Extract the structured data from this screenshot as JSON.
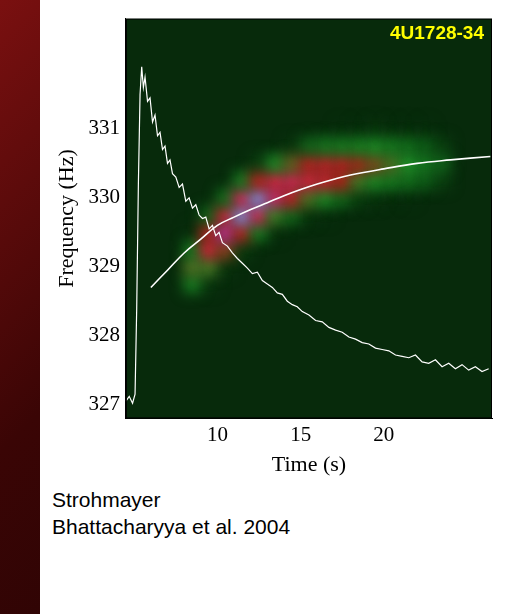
{
  "chart_data": {
    "type": "heatmap",
    "annotation": {
      "text": "4U1728-34",
      "color": "#ffff00"
    },
    "x_label": "Time (s)",
    "y_label": "Frequency (Hz)",
    "xlim": [
      4.5,
      26.5
    ],
    "xticks": [
      10,
      15,
      20
    ],
    "ylim": [
      326.8,
      332.6
    ],
    "yticks": [
      327,
      328,
      329,
      330,
      331
    ],
    "grid": false,
    "credits": [
      "Strohmayer",
      "Bhattacharyya et al. 2004"
    ],
    "heatmap": {
      "x": [
        8.5,
        9.5,
        10.5,
        11.5,
        12.5,
        13.5,
        14.5,
        15.5,
        16.5,
        17.5,
        18.5,
        19.5,
        20.5,
        21.5,
        22.5,
        23.5
      ],
      "y": [
        328.75,
        329.0,
        329.25,
        329.5,
        329.75,
        330.0,
        330.25,
        330.5,
        330.75,
        331.0
      ],
      "cells": [
        [
          1.0,
          0.2,
          0,
          0,
          0,
          0,
          0,
          0,
          0,
          0,
          0,
          0,
          0,
          0,
          0,
          0
        ],
        [
          2.0,
          1.9,
          0.2,
          0,
          0,
          0,
          0,
          0,
          0,
          0,
          0,
          0,
          0,
          0,
          0,
          0
        ],
        [
          1.0,
          4.9,
          2.6,
          0.3,
          0,
          0,
          0,
          0,
          0,
          0,
          0,
          0,
          0,
          0,
          0,
          0
        ],
        [
          0.1,
          3.2,
          6.8,
          3.3,
          1.0,
          0.1,
          0,
          0,
          0,
          0,
          0,
          0,
          0,
          0,
          0,
          0
        ],
        [
          0,
          0.6,
          4.5,
          8.7,
          5.8,
          1.8,
          0.7,
          0.2,
          0.1,
          0,
          0,
          0,
          0,
          0,
          0,
          0
        ],
        [
          0,
          0,
          0.8,
          5.8,
          8.7,
          6.2,
          3.8,
          2.0,
          1.3,
          0.7,
          0.3,
          0.2,
          0.1,
          0.1,
          0,
          0
        ],
        [
          0,
          0,
          0,
          1.0,
          3.3,
          5.5,
          5.8,
          5.3,
          4.5,
          3.1,
          1.9,
          1.3,
          1.0,
          0.8,
          0.5,
          0.3
        ],
        [
          0,
          0,
          0,
          0,
          0.3,
          1.2,
          2.2,
          3.5,
          3.9,
          3.6,
          2.9,
          2.5,
          2.0,
          1.5,
          1.0,
          0.6
        ],
        [
          0,
          0,
          0,
          0,
          0,
          0,
          0.2,
          0.6,
          0.9,
          1.0,
          1.1,
          1.3,
          1.0,
          0.8,
          0.5,
          0.3
        ],
        [
          0,
          0,
          0,
          0,
          0,
          0,
          0,
          0,
          0,
          0.1,
          0.1,
          0.2,
          0.1,
          0.1,
          0.1,
          0
        ]
      ]
    },
    "series": [
      {
        "type": "line",
        "color": "#ffffff",
        "line_style": "jagged",
        "x": [
          4.5,
          4.7,
          4.9,
          5.05,
          5.15,
          5.25,
          5.35,
          5.45,
          5.55,
          5.65,
          5.8,
          5.95,
          6.1,
          6.25,
          6.4,
          6.55,
          6.7,
          6.85,
          7.0,
          7.15,
          7.3,
          7.5,
          7.7,
          7.9,
          8.1,
          8.3,
          8.5,
          8.7,
          8.9,
          9.1,
          9.3,
          9.5,
          9.7,
          9.9,
          10.1,
          10.3,
          10.6,
          10.9,
          11.2,
          11.5,
          11.8,
          12.1,
          12.4,
          12.7,
          13.0,
          13.3,
          13.6,
          13.9,
          14.2,
          14.5,
          14.8,
          15.1,
          15.5,
          15.9,
          16.3,
          16.7,
          17.1,
          17.5,
          17.9,
          18.3,
          18.7,
          19.1,
          19.5,
          19.9,
          20.3,
          20.7,
          21.1,
          21.5,
          21.9,
          22.3,
          22.7,
          23.1,
          23.5,
          23.9,
          24.3,
          24.7,
          25.1,
          25.5,
          25.9,
          26.3
        ],
        "values": [
          327.05,
          327.12,
          327.02,
          327.15,
          328.4,
          330.2,
          331.5,
          331.9,
          331.6,
          331.75,
          331.4,
          331.45,
          331.1,
          331.2,
          330.9,
          330.95,
          330.7,
          330.75,
          330.5,
          330.55,
          330.35,
          330.3,
          330.15,
          330.2,
          329.95,
          330.0,
          329.85,
          329.9,
          329.75,
          329.7,
          329.72,
          329.55,
          329.6,
          329.45,
          329.5,
          329.35,
          329.3,
          329.2,
          329.12,
          329.05,
          328.98,
          328.9,
          328.92,
          328.8,
          328.75,
          328.7,
          328.62,
          328.6,
          328.5,
          328.45,
          328.42,
          328.35,
          328.3,
          328.22,
          328.2,
          328.12,
          328.08,
          328.05,
          327.98,
          327.95,
          327.9,
          327.88,
          327.82,
          327.8,
          327.78,
          327.72,
          327.7,
          327.68,
          327.72,
          327.62,
          327.6,
          327.65,
          327.55,
          327.6,
          327.52,
          327.58,
          327.5,
          327.55,
          327.48,
          327.52
        ]
      },
      {
        "type": "line",
        "color": "#ffffff",
        "line_style": "smooth",
        "x": [
          6.0,
          7.0,
          8.0,
          9.0,
          10.0,
          11.0,
          12.0,
          13.0,
          14.0,
          15.0,
          16.0,
          17.0,
          18.0,
          20.0,
          22.0,
          24.0,
          26.4
        ],
        "values": [
          328.7,
          328.95,
          329.2,
          329.4,
          329.6,
          329.72,
          329.83,
          329.93,
          330.03,
          330.12,
          330.2,
          330.27,
          330.33,
          330.42,
          330.5,
          330.55,
          330.6
        ]
      }
    ]
  }
}
